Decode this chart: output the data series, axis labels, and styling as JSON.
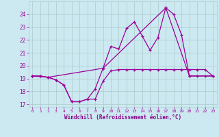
{
  "bg_color": "#cce8f0",
  "grid_color": "#aacccc",
  "line_color": "#990099",
  "marker_color": "#990099",
  "xlabel": "Windchill (Refroidissement éolien,°C)",
  "xlabel_color": "#880088",
  "tick_color": "#990099",
  "ylim": [
    16.8,
    25.0
  ],
  "xlim": [
    -0.5,
    23.5
  ],
  "yticks": [
    17,
    18,
    19,
    20,
    21,
    22,
    23,
    24
  ],
  "xticks": [
    0,
    1,
    2,
    3,
    4,
    5,
    6,
    7,
    8,
    9,
    10,
    11,
    12,
    13,
    14,
    15,
    16,
    17,
    18,
    19,
    20,
    21,
    22,
    23
  ],
  "series1_x": [
    0,
    1,
    2,
    3,
    4,
    5,
    6,
    7,
    8,
    9,
    10,
    11,
    12,
    13,
    14,
    15,
    16,
    17,
    18,
    19,
    20,
    21,
    22,
    23
  ],
  "series1_y": [
    19.2,
    19.2,
    19.1,
    18.9,
    18.5,
    17.2,
    17.2,
    17.4,
    17.4,
    18.8,
    19.6,
    19.7,
    19.7,
    19.7,
    19.7,
    19.7,
    19.7,
    19.7,
    19.7,
    19.7,
    19.7,
    19.7,
    19.7,
    19.2
  ],
  "series2_x": [
    0,
    1,
    2,
    3,
    4,
    5,
    6,
    7,
    8,
    9,
    10,
    11,
    12,
    13,
    14,
    15,
    16,
    17,
    18,
    19,
    20,
    21,
    22,
    23
  ],
  "series2_y": [
    19.2,
    19.2,
    19.1,
    18.9,
    18.5,
    17.2,
    17.2,
    17.4,
    18.2,
    19.8,
    21.5,
    21.3,
    22.9,
    23.4,
    22.3,
    21.2,
    22.2,
    24.5,
    24.0,
    22.4,
    19.2,
    19.2,
    19.2,
    19.2
  ],
  "series3_x": [
    0,
    2,
    9,
    17,
    20,
    23
  ],
  "series3_y": [
    19.2,
    19.1,
    19.8,
    24.5,
    19.2,
    19.2
  ]
}
